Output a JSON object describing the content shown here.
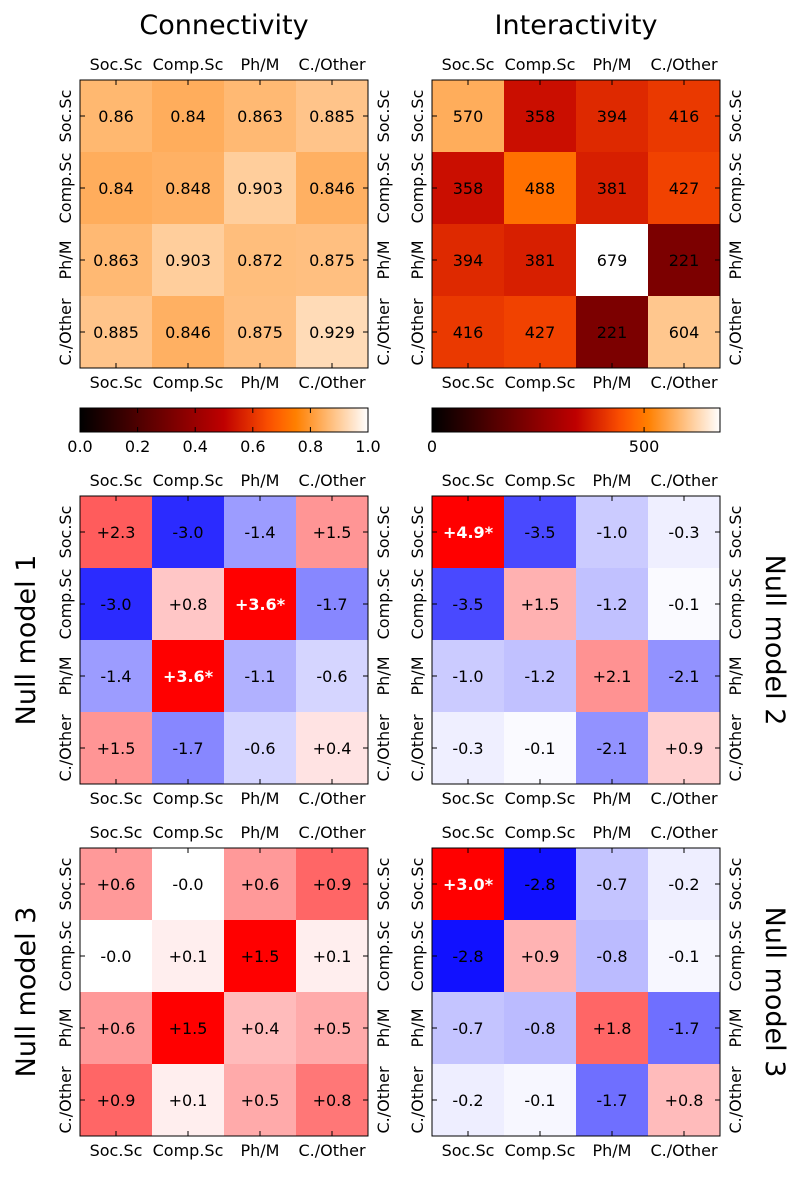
{
  "figure": {
    "col_titles": [
      "Connectivity",
      "Interactivity"
    ],
    "row_titles": {
      "null1_left": "Null model 1",
      "null2_right": "Null model 2",
      "null3_left": "Null model 3",
      "null3_right": "Null model 3"
    }
  },
  "categories": [
    "Soc.Sc",
    "Comp.Sc",
    "Ph/M",
    "C./Other"
  ],
  "chart_data": [
    {
      "id": "connectivity",
      "type": "heatmap",
      "title": "Connectivity",
      "colormap": "gist_heat",
      "categories": [
        "Soc.Sc",
        "Comp.Sc",
        "Ph/M",
        "C./Other"
      ],
      "values": [
        [
          0.86,
          0.84,
          0.863,
          0.885
        ],
        [
          0.84,
          0.848,
          0.903,
          0.846
        ],
        [
          0.863,
          0.903,
          0.872,
          0.875
        ],
        [
          0.885,
          0.846,
          0.875,
          0.929
        ]
      ],
      "labels": [
        [
          "0.86",
          "0.84",
          "0.863",
          "0.885"
        ],
        [
          "0.84",
          "0.848",
          "0.903",
          "0.846"
        ],
        [
          "0.863",
          "0.903",
          "0.872",
          "0.875"
        ],
        [
          "0.885",
          "0.846",
          "0.875",
          "0.929"
        ]
      ],
      "vmin": 0,
      "vmax": 1,
      "colorbar": {
        "ticks": [
          0.0,
          0.2,
          0.4,
          0.6,
          0.8,
          1.0
        ],
        "tick_labels": [
          "0.0",
          "0.2",
          "0.4",
          "0.6",
          "0.8",
          "1.0"
        ]
      }
    },
    {
      "id": "interactivity",
      "type": "heatmap",
      "title": "Interactivity",
      "colormap": "gist_heat",
      "categories": [
        "Soc.Sc",
        "Comp.Sc",
        "Ph/M",
        "C./Other"
      ],
      "values": [
        [
          570,
          358,
          394,
          416
        ],
        [
          358,
          488,
          381,
          427
        ],
        [
          394,
          381,
          679,
          221
        ],
        [
          416,
          427,
          221,
          604
        ]
      ],
      "labels": [
        [
          "570",
          "358",
          "394",
          "416"
        ],
        [
          "358",
          "488",
          "381",
          "427"
        ],
        [
          "394",
          "381",
          "679",
          "221"
        ],
        [
          "416",
          "427",
          "221",
          "604"
        ]
      ],
      "vmin": 0,
      "vmax": 679,
      "colorbar": {
        "ticks": [
          0,
          500
        ],
        "tick_labels": [
          "0",
          "500"
        ]
      }
    },
    {
      "id": "null1_connectivity",
      "type": "heatmap",
      "title": "Null model 1 (Connectivity)",
      "colormap": "bwr",
      "categories": [
        "Soc.Sc",
        "Comp.Sc",
        "Ph/M",
        "C./Other"
      ],
      "values": [
        [
          2.3,
          -3.0,
          -1.4,
          1.5
        ],
        [
          -3.0,
          0.8,
          3.6,
          -1.7
        ],
        [
          -1.4,
          3.6,
          -1.1,
          -0.6
        ],
        [
          1.5,
          -1.7,
          -0.6,
          0.4
        ]
      ],
      "labels": [
        [
          "+2.3",
          "-3.0",
          "-1.4",
          "+1.5"
        ],
        [
          "-3.0",
          "+0.8",
          "+3.6*",
          "-1.7"
        ],
        [
          "-1.4",
          "+3.6*",
          "-1.1",
          "-0.6"
        ],
        [
          "+1.5",
          "-1.7",
          "-0.6",
          "+0.4"
        ]
      ],
      "vmax_abs": 3.6
    },
    {
      "id": "null2_interactivity",
      "type": "heatmap",
      "title": "Null model 2 (Interactivity)",
      "colormap": "bwr",
      "categories": [
        "Soc.Sc",
        "Comp.Sc",
        "Ph/M",
        "C./Other"
      ],
      "values": [
        [
          4.9,
          -3.5,
          -1.0,
          -0.3
        ],
        [
          -3.5,
          1.5,
          -1.2,
          -0.1
        ],
        [
          -1.0,
          -1.2,
          2.1,
          -2.1
        ],
        [
          -0.3,
          -0.1,
          -2.1,
          0.9
        ]
      ],
      "labels": [
        [
          "+4.9*",
          "-3.5",
          "-1.0",
          "-0.3"
        ],
        [
          "-3.5",
          "+1.5",
          "-1.2",
          "-0.1"
        ],
        [
          "-1.0",
          "-1.2",
          "+2.1",
          "-2.1"
        ],
        [
          "-0.3",
          "-0.1",
          "-2.1",
          "+0.9"
        ]
      ],
      "vmax_abs": 4.9
    },
    {
      "id": "null3_connectivity",
      "type": "heatmap",
      "title": "Null model 3 (Connectivity)",
      "colormap": "bwr",
      "categories": [
        "Soc.Sc",
        "Comp.Sc",
        "Ph/M",
        "C./Other"
      ],
      "values": [
        [
          0.6,
          -0.0,
          0.6,
          0.9
        ],
        [
          -0.0,
          0.1,
          1.5,
          0.1
        ],
        [
          0.6,
          1.5,
          0.4,
          0.5
        ],
        [
          0.9,
          0.1,
          0.5,
          0.8
        ]
      ],
      "labels": [
        [
          "+0.6",
          "-0.0",
          "+0.6",
          "+0.9"
        ],
        [
          "-0.0",
          "+0.1",
          "+1.5",
          "+0.1"
        ],
        [
          "+0.6",
          "+1.5",
          "+0.4",
          "+0.5"
        ],
        [
          "+0.9",
          "+0.1",
          "+0.5",
          "+0.8"
        ]
      ],
      "vmax_abs": 1.5
    },
    {
      "id": "null3_interactivity",
      "type": "heatmap",
      "title": "Null model 3 (Interactivity)",
      "colormap": "bwr",
      "categories": [
        "Soc.Sc",
        "Comp.Sc",
        "Ph/M",
        "C./Other"
      ],
      "values": [
        [
          3.0,
          -2.8,
          -0.7,
          -0.2
        ],
        [
          -2.8,
          0.9,
          -0.8,
          -0.1
        ],
        [
          -0.7,
          -0.8,
          1.8,
          -1.7
        ],
        [
          -0.2,
          -0.1,
          -1.7,
          0.8
        ]
      ],
      "labels": [
        [
          "+3.0*",
          "-2.8",
          "-0.7",
          "-0.2"
        ],
        [
          "-2.8",
          "+0.9",
          "-0.8",
          "-0.1"
        ],
        [
          "-0.7",
          "-0.8",
          "+1.8",
          "-1.7"
        ],
        [
          "-0.2",
          "-0.1",
          "-1.7",
          "+0.8"
        ]
      ],
      "vmax_abs": 3.0
    }
  ]
}
